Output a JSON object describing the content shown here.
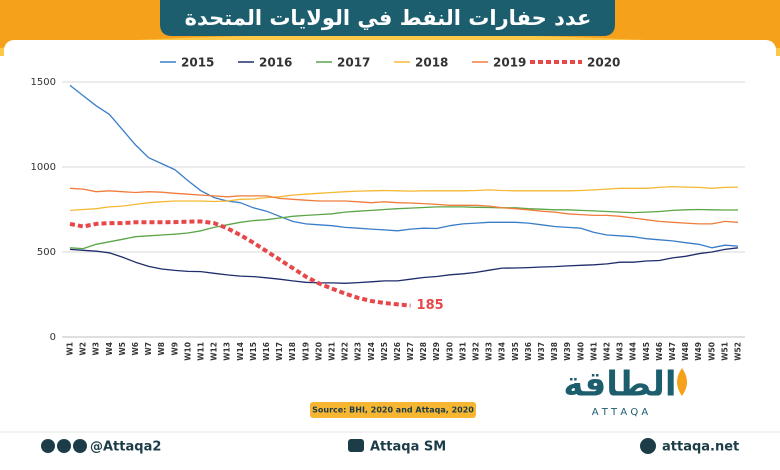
{
  "chart_data": {
    "type": "line",
    "title": "عدد حفارات النفط في الولايات المتحدة",
    "categories": [
      "W1",
      "W2",
      "W3",
      "W4",
      "W5",
      "W6",
      "W7",
      "W8",
      "W9",
      "W10",
      "W11",
      "W12",
      "W13",
      "W14",
      "W15",
      "W16",
      "W17",
      "W18",
      "W19",
      "W20",
      "W21",
      "W22",
      "W23",
      "W24",
      "W25",
      "W26",
      "W27",
      "W28",
      "W29",
      "W30",
      "W31",
      "W32",
      "W33",
      "W34",
      "W35",
      "W36",
      "W37",
      "W38",
      "W39",
      "W40",
      "W41",
      "W42",
      "W43",
      "W44",
      "W45",
      "W46",
      "W47",
      "W48",
      "W49",
      "W50",
      "W51",
      "W52"
    ],
    "ylim": [
      0,
      1500
    ],
    "yticks": [
      0,
      500,
      1000,
      1500
    ],
    "grid": true,
    "legend": "top",
    "series": [
      {
        "name": "2015",
        "color": "#3b7dc8",
        "values": [
          1480,
          1420,
          1360,
          1310,
          1220,
          1130,
          1055,
          1020,
          985,
          920,
          860,
          820,
          800,
          790,
          760,
          740,
          710,
          680,
          665,
          660,
          655,
          645,
          640,
          635,
          630,
          625,
          635,
          640,
          638,
          655,
          665,
          670,
          675,
          675,
          675,
          670,
          660,
          650,
          645,
          640,
          615,
          600,
          595,
          590,
          578,
          572,
          565,
          555,
          545,
          525,
          540,
          535
        ]
      },
      {
        "name": "2016",
        "color": "#1f2d6b",
        "values": [
          515,
          510,
          505,
          495,
          470,
          440,
          415,
          400,
          392,
          386,
          385,
          375,
          365,
          358,
          355,
          348,
          340,
          330,
          322,
          318,
          318,
          316,
          320,
          325,
          330,
          330,
          340,
          350,
          356,
          366,
          372,
          380,
          393,
          405,
          406,
          408,
          412,
          414,
          418,
          422,
          425,
          430,
          440,
          440,
          447,
          450,
          465,
          475,
          490,
          500,
          515,
          525
        ]
      },
      {
        "name": "2017",
        "color": "#5ba647",
        "values": [
          525,
          520,
          545,
          560,
          575,
          590,
          595,
          600,
          605,
          612,
          625,
          645,
          660,
          675,
          685,
          690,
          700,
          710,
          715,
          720,
          725,
          735,
          740,
          745,
          750,
          755,
          758,
          762,
          765,
          765,
          765,
          763,
          762,
          760,
          760,
          755,
          752,
          748,
          748,
          745,
          742,
          738,
          735,
          732,
          735,
          738,
          745,
          748,
          750,
          748,
          747,
          747
        ]
      },
      {
        "name": "2018",
        "color": "#f5b935",
        "values": [
          745,
          750,
          755,
          765,
          770,
          780,
          790,
          795,
          800,
          800,
          800,
          797,
          800,
          810,
          812,
          820,
          825,
          835,
          840,
          845,
          850,
          855,
          858,
          860,
          862,
          860,
          858,
          860,
          860,
          860,
          860,
          862,
          865,
          862,
          860,
          860,
          860,
          860,
          860,
          862,
          865,
          870,
          875,
          875,
          875,
          880,
          885,
          882,
          880,
          875,
          880,
          882
        ]
      },
      {
        "name": "2019",
        "color": "#ef7d3c",
        "values": [
          875,
          870,
          855,
          860,
          855,
          850,
          855,
          852,
          845,
          840,
          835,
          830,
          825,
          830,
          830,
          830,
          815,
          810,
          805,
          800,
          800,
          800,
          795,
          790,
          795,
          790,
          788,
          785,
          780,
          775,
          775,
          775,
          770,
          760,
          755,
          748,
          740,
          735,
          725,
          720,
          715,
          715,
          710,
          700,
          690,
          680,
          675,
          670,
          665,
          665,
          680,
          675
        ]
      },
      {
        "name": "2020",
        "color": "#e8474a",
        "dashed": true,
        "values": [
          665,
          650,
          665,
          670,
          670,
          675,
          675,
          675,
          676,
          678,
          680,
          670,
          640,
          600,
          555,
          505,
          455,
          405,
          355,
          315,
          285,
          255,
          230,
          212,
          200,
          192,
          185,
          null,
          null,
          null,
          null,
          null,
          null,
          null,
          null,
          null,
          null,
          null,
          null,
          null,
          null,
          null,
          null,
          null,
          null,
          null,
          null,
          null,
          null,
          null,
          null,
          null
        ]
      }
    ],
    "source": "Source: BHI, 2020 and Attaqa, 2020"
  },
  "logo": {
    "name": "الطاقة",
    "latin": "A T T A Q A"
  },
  "footer": {
    "social": "@Attaqa2",
    "youtube": "Attaqa SM",
    "website": "attaqa.net"
  }
}
